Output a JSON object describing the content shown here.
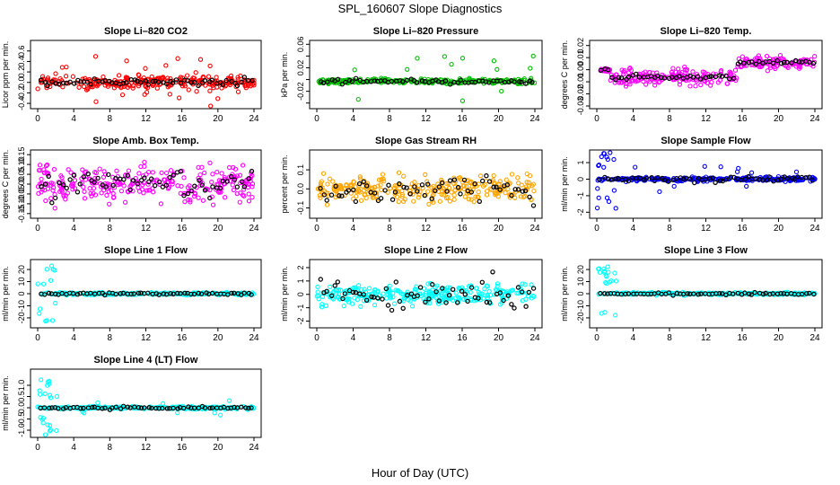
{
  "figure": {
    "title": "SPL_160607  Slope Diagnostics",
    "xlabel": "Hour of Day (UTC)"
  },
  "chart_data": [
    {
      "type": "scatter",
      "title": "Slope Li–820 CO2",
      "ylabel": "Licor ppm per min.",
      "xlim": [
        0,
        24
      ],
      "ylim": [
        -0.45,
        0.75
      ],
      "yticks": [
        -0.4,
        -0.2,
        0.0,
        0.2,
        0.4,
        0.6
      ],
      "ytick_labels": [
        "-0.4",
        "-0.2",
        "0.0",
        "0.2",
        "0.4",
        "0.6"
      ],
      "color": "#ff0000",
      "noise": 0.11,
      "outliers": 0.045,
      "outlier_amp": 0.5,
      "bias": [
        {
          "from": 0,
          "to": 24,
          "shift": 0.0
        }
      ],
      "black_noise": 0.06,
      "seed": 11
    },
    {
      "type": "scatter",
      "title": "Slope Li–820 Pressure",
      "ylabel": "kPa per min.",
      "xlim": [
        0,
        24
      ],
      "ylim": [
        -0.045,
        0.062
      ],
      "yticks": [
        -0.04,
        -0.02,
        0.0,
        0.02,
        0.04,
        0.06
      ],
      "ytick_labels": [
        "",
        "-0.02",
        "",
        "0.02",
        "",
        "0.06"
      ],
      "color": "#00c000",
      "noise": 0.0035,
      "outliers": 0.035,
      "outlier_amp": 0.04,
      "bias": [
        {
          "from": 0,
          "to": 24,
          "shift": -0.003
        }
      ],
      "black_noise": 0.003,
      "seed": 23
    },
    {
      "type": "scatter",
      "title": "Slope Li–820 Temp.",
      "ylabel": "degrees C per min.",
      "xlim": [
        0,
        24
      ],
      "ylim": [
        -0.03,
        0.022
      ],
      "yticks": [
        -0.03,
        -0.02,
        -0.01,
        0.0,
        0.01,
        0.02
      ],
      "ytick_labels": [
        "-0.03",
        "-0.02",
        "-0.01",
        "0.00",
        "0.01",
        "0.02"
      ],
      "color": "#ff00ff",
      "noise": 0.0015,
      "outliers": 0.0,
      "outlier_amp": 0.0,
      "bias": [
        {
          "from": 0,
          "to": 1.5,
          "shift": 0.0
        },
        {
          "from": 1.5,
          "to": 15.5,
          "shift": -0.006,
          "spread": 0.006
        },
        {
          "from": 15.5,
          "to": 24,
          "shift": 0.006,
          "spread": 0.004
        }
      ],
      "black_noise": 0.0015,
      "seed": 37
    },
    {
      "type": "scatter",
      "title": "Slope Amb. Box Temp.",
      "ylabel": "degrees C per min.",
      "xlim": [
        0,
        24
      ],
      "ylim": [
        -0.16,
        0.16
      ],
      "yticks": [
        -0.15,
        -0.1,
        -0.05,
        0.0,
        0.05,
        0.1,
        0.15
      ],
      "ytick_labels": [
        "-0.15",
        "-0.10",
        "-0.05",
        "0.00",
        "0.05",
        "0.10",
        "0.15"
      ],
      "color": "#ff00ff",
      "noise": 0.075,
      "outliers": 0.0,
      "outlier_amp": 0.0,
      "bias": [
        {
          "from": 0,
          "to": 24,
          "shift": 0.0
        }
      ],
      "black_noise": 0.06,
      "seed": 41
    },
    {
      "type": "scatter",
      "title": "Slope Gas Stream RH",
      "ylabel": "percent per min.",
      "xlim": [
        0,
        24
      ],
      "ylim": [
        -0.14,
        0.19
      ],
      "yticks": [
        -0.1,
        0.0,
        0.1
      ],
      "ytick_labels": [
        "-0.1",
        "0.0",
        "0.1"
      ],
      "color": "#ffa500",
      "noise": 0.055,
      "outliers": 0.03,
      "outlier_amp": 0.1,
      "bias": [
        {
          "from": 0,
          "to": 24,
          "shift": 0.0
        }
      ],
      "black_noise": 0.06,
      "seed": 53
    },
    {
      "type": "scatter",
      "title": "Slope Sample Flow",
      "ylabel": "ml/min per min.",
      "xlim": [
        0,
        24
      ],
      "ylim": [
        -2.2,
        1.6
      ],
      "yticks": [
        -2,
        -1,
        0,
        1
      ],
      "ytick_labels": [
        "-2",
        "-1",
        "0",
        "1"
      ],
      "color": "#0000ff",
      "noise": 0.1,
      "outliers": 0.035,
      "outlier_amp": 0.8,
      "bias": [
        {
          "from": 0,
          "to": 24,
          "shift": 0.0
        }
      ],
      "early_burst": 1.8,
      "black_noise": 0.15,
      "seed": 61
    },
    {
      "type": "scatter",
      "title": "Slope Line 1 Flow",
      "ylabel": "ml/min per min.",
      "xlim": [
        0,
        24
      ],
      "ylim": [
        -26,
        26
      ],
      "yticks": [
        -20,
        -10,
        0,
        10,
        20
      ],
      "ytick_labels": [
        "-20",
        "-10",
        "0",
        "10",
        "20"
      ],
      "color": "#00ffff",
      "noise": 0.8,
      "outliers": 0.0,
      "outlier_amp": 0.0,
      "bias": [
        {
          "from": 0,
          "to": 24,
          "shift": 0.0
        }
      ],
      "early_burst": 24,
      "black_noise": 0.7,
      "seed": 71
    },
    {
      "type": "scatter",
      "title": "Slope Line 2 Flow",
      "ylabel": "ml/min per min.",
      "xlim": [
        0,
        24
      ],
      "ylim": [
        -2.3,
        2.4
      ],
      "yticks": [
        -2,
        -1,
        0,
        1,
        2
      ],
      "ytick_labels": [
        "-2",
        "-1",
        "0",
        "1",
        "2"
      ],
      "color": "#00ffff",
      "noise": 0.6,
      "outliers": 0.04,
      "outlier_amp": 1.0,
      "bias": [
        {
          "from": 0,
          "to": 24,
          "shift": 0.0
        }
      ],
      "black_noise": 0.9,
      "seed": 83
    },
    {
      "type": "scatter",
      "title": "Slope Line 3 Flow",
      "ylabel": "ml/min per min.",
      "xlim": [
        0,
        24
      ],
      "ylim": [
        -26,
        26
      ],
      "yticks": [
        -20,
        -10,
        0,
        10,
        20
      ],
      "ytick_labels": [
        "-20",
        "-10",
        "0",
        "10",
        "20"
      ],
      "color": "#00ffff",
      "noise": 0.8,
      "outliers": 0.0,
      "outlier_amp": 0.0,
      "bias": [
        {
          "from": 0,
          "to": 24,
          "shift": 0.0
        }
      ],
      "early_burst": 24,
      "black_noise": 0.7,
      "seed": 97
    },
    {
      "type": "scatter",
      "title": "Slope Line 4 (LT) Flow",
      "ylabel": "ml/min per min.",
      "xlim": [
        0,
        24
      ],
      "ylim": [
        -1.2,
        1.6
      ],
      "yticks": [
        -1.0,
        -0.5,
        0.0,
        0.5,
        1.0
      ],
      "ytick_labels": [
        "-1.0",
        "-0.5",
        "0.0",
        "0.5",
        "1.0"
      ],
      "color": "#00ffff",
      "noise": 0.05,
      "outliers": 0.015,
      "outlier_amp": 0.35,
      "bias": [
        {
          "from": 0,
          "to": 24,
          "shift": 0.0
        }
      ],
      "early_burst": 1.3,
      "black_noise": 0.05,
      "seed": 101
    }
  ],
  "xticks": [
    0,
    4,
    8,
    12,
    16,
    20,
    24
  ],
  "xtick_labels": [
    "0",
    "4",
    "8",
    "12",
    "16",
    "20",
    "24"
  ]
}
